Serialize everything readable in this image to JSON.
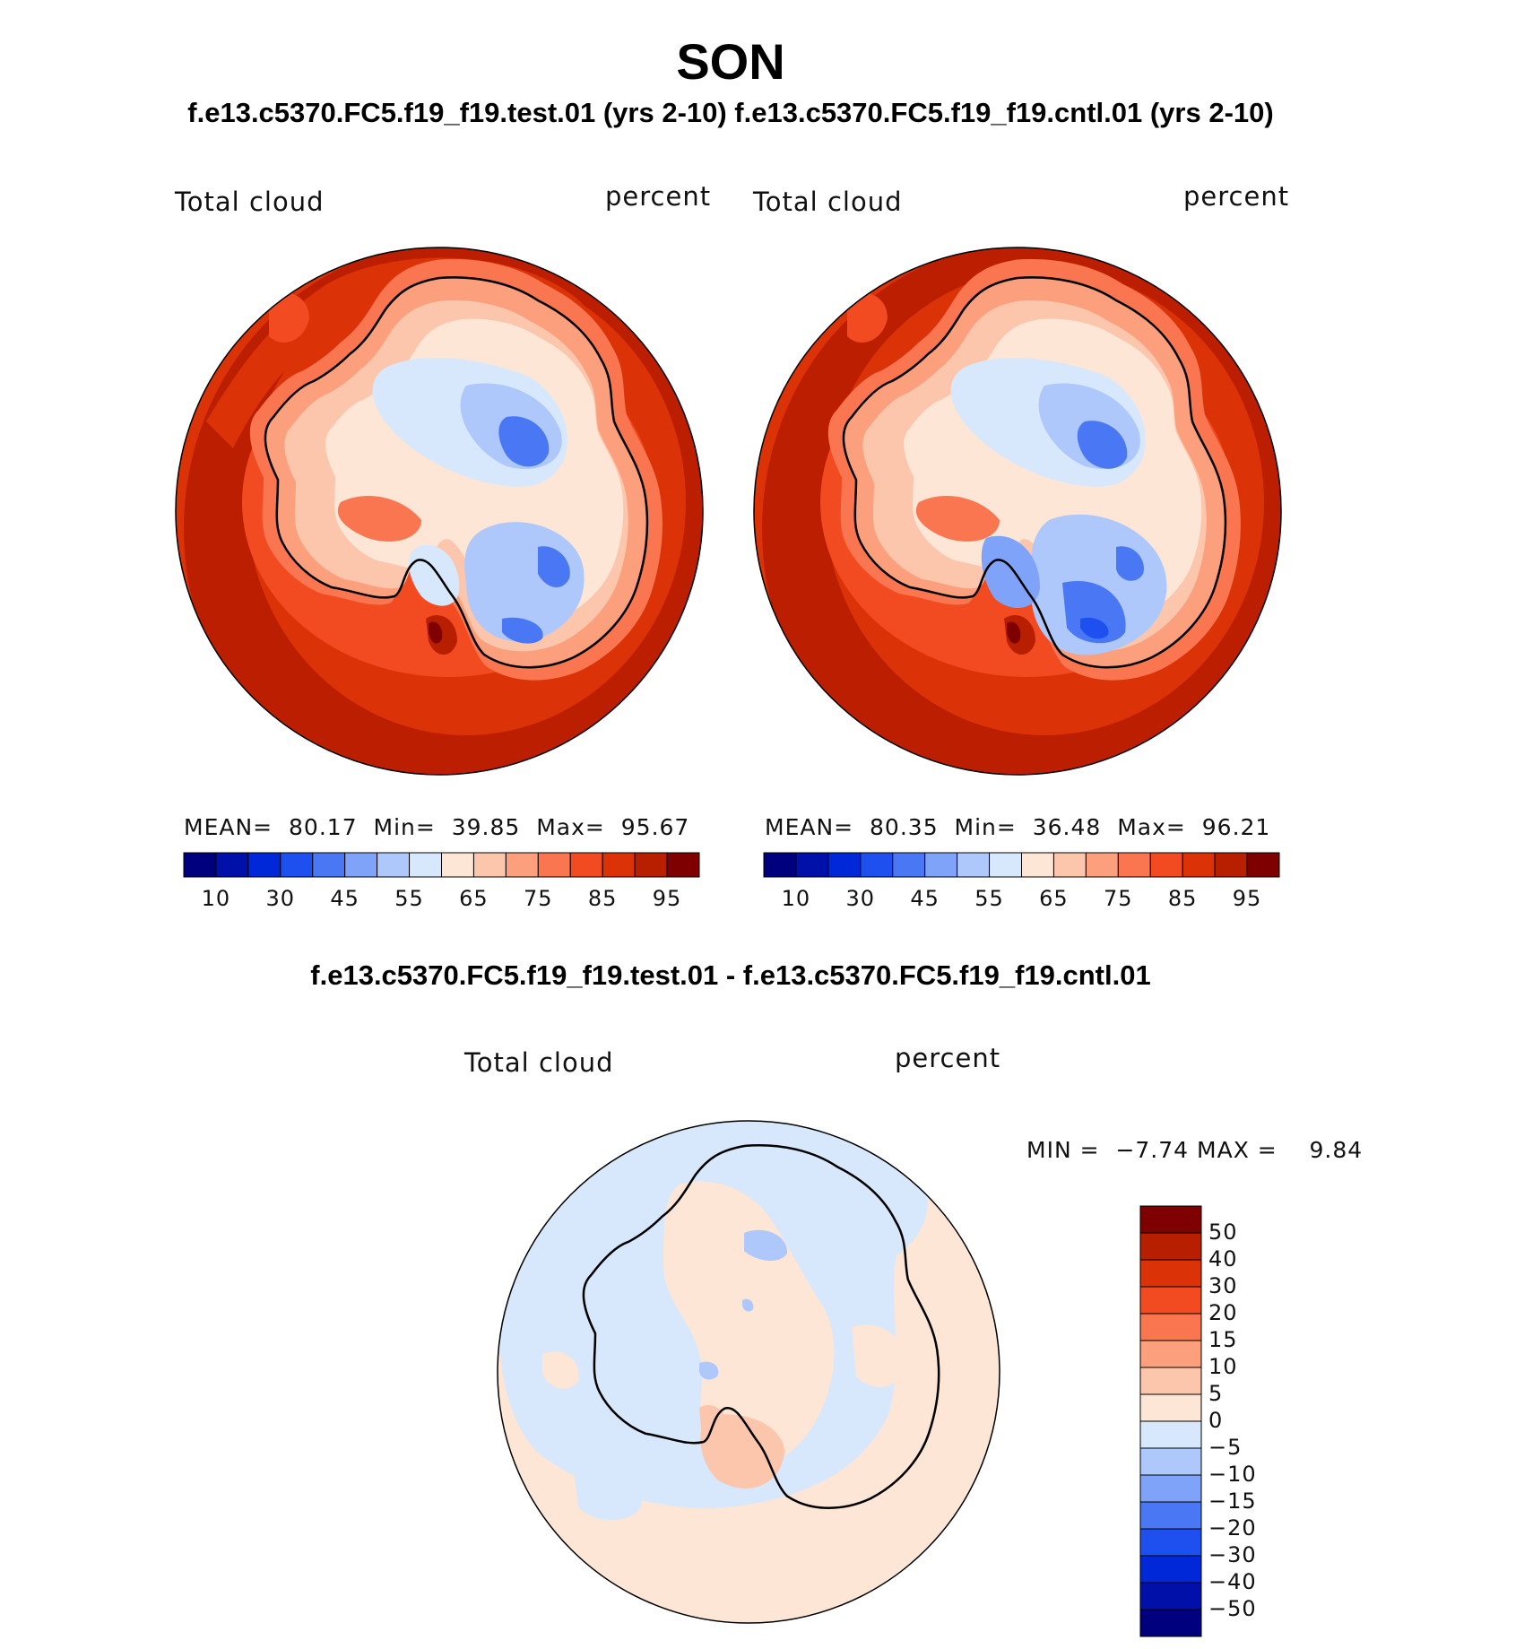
{
  "title": "SON",
  "subtitle": "f.e13.c5370.FC5.f19_f19.test.01 (yrs 2-10) f.e13.c5370.FC5.f19_f19.cntl.01 (yrs 2-10)",
  "diff_title": "f.e13.c5370.FC5.f19_f19.test.01 - f.e13.c5370.FC5.f19_f19.cntl.01",
  "panels": [
    {
      "variable": "Total cloud",
      "units": "percent",
      "stats": {
        "mean_label": "MEAN=",
        "mean": "80.17",
        "min_label": "Min=",
        "min": "39.85",
        "max_label": "Max=",
        "max": "95.67"
      }
    },
    {
      "variable": "Total cloud",
      "units": "percent",
      "stats": {
        "mean_label": "MEAN=",
        "mean": "80.35",
        "min_label": "Min=",
        "min": "36.48",
        "max_label": "Max=",
        "max": "96.21"
      }
    }
  ],
  "diff_panel": {
    "variable": "Total cloud",
    "units": "percent",
    "stats": {
      "min_label": "MIN =",
      "min": "−7.74",
      "max_label": "MAX =",
      "max": "9.84"
    }
  },
  "colorbar_abs": {
    "colors": [
      "#00007f",
      "#0010a8",
      "#0028d8",
      "#1e50f0",
      "#4a78f5",
      "#7ea3f9",
      "#aec8fb",
      "#d7e8fc",
      "#fde6d6",
      "#fcc6ad",
      "#fb9f7c",
      "#f97650",
      "#f24b22",
      "#dc3208",
      "#b81e00",
      "#7f0000"
    ],
    "tick_labels": [
      "10",
      "30",
      "45",
      "55",
      "65",
      "75",
      "85",
      "95"
    ]
  },
  "colorbar_diff": {
    "colors": [
      "#7f0000",
      "#b81e00",
      "#dc3208",
      "#f24b22",
      "#f97650",
      "#fb9f7c",
      "#fcc6ad",
      "#fde6d6",
      "#d7e8fc",
      "#aec8fb",
      "#7ea3f9",
      "#4a78f5",
      "#1e50f0",
      "#0028d8",
      "#0010a8",
      "#00007f"
    ],
    "tick_labels": [
      "50",
      "40",
      "30",
      "20",
      "15",
      "10",
      "5",
      "0",
      "−5",
      "−10",
      "−15",
      "−20",
      "−30",
      "−40",
      "−50"
    ]
  },
  "colors": {
    "ocean_high": "#b81e00",
    "ocean_mid": "#dc3208",
    "coast_band": "#f24b22",
    "interior_light": "#fde6d6",
    "interior_blue": "#aec8fb",
    "interior_deep": "#4a78f5",
    "diff_neg": "#d7e8fc",
    "diff_pos": "#fde6d6"
  }
}
